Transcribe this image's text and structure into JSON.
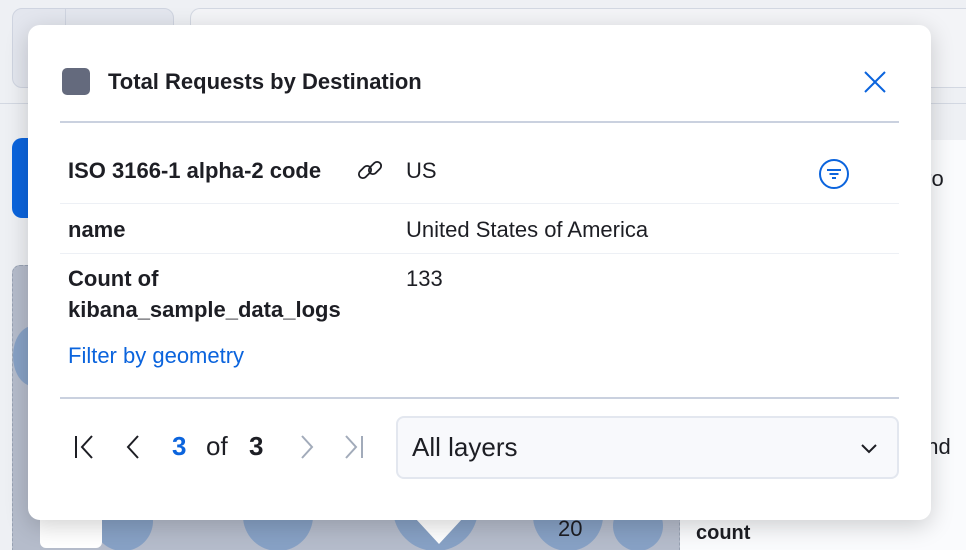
{
  "popover": {
    "title": "Total Requests by Destination",
    "layer_color": "#646a7d",
    "rows": [
      {
        "key": "ISO 3166-1 alpha-2 code",
        "value": "US"
      },
      {
        "key": "name",
        "value": "United States of America"
      },
      {
        "key": "Count of kibana_sample_data_logs",
        "value": "133"
      }
    ],
    "filter_by_geometry": "Filter by geometry",
    "pagination": {
      "current": "3",
      "of": "of",
      "total": "3"
    },
    "layer_select": "All layers"
  },
  "background": {
    "right_texts": [
      "fro",
      "and",
      "count"
    ],
    "map_labels": [
      "20"
    ]
  },
  "colors": {
    "accent": "#0b64dd",
    "bubble": "#7f9cc4"
  }
}
